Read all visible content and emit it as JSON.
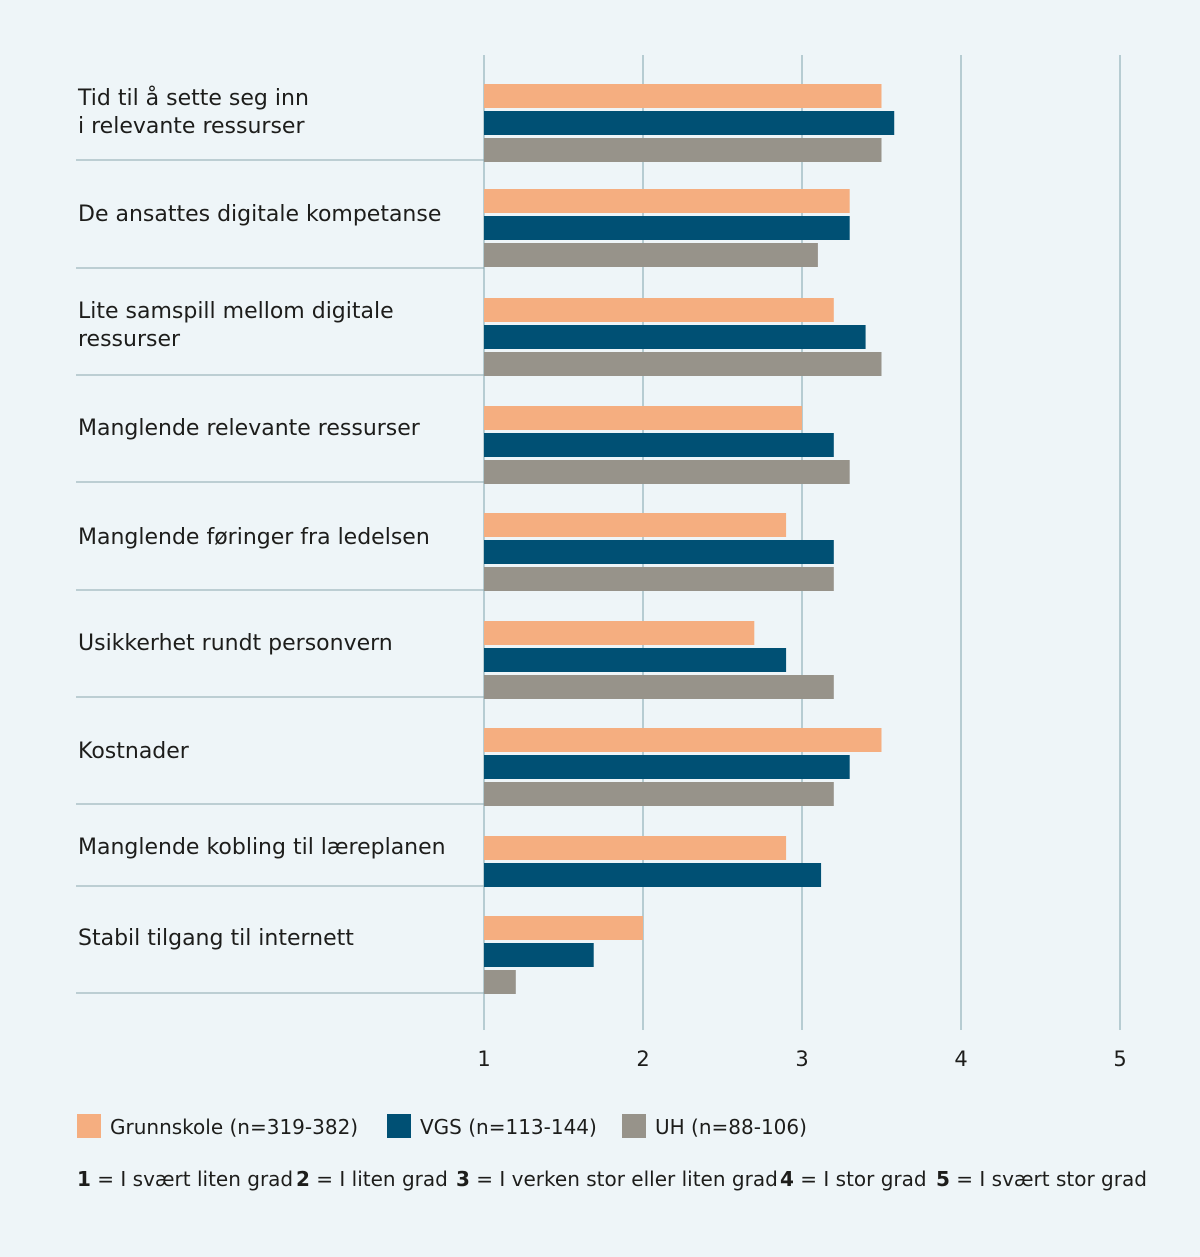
{
  "chart_data": {
    "type": "bar",
    "orientation": "horizontal",
    "categories": [
      [
        "Tid til å sette seg inn",
        "i relevante ressurser"
      ],
      [
        "De ansattes digitale kompetanse"
      ],
      [
        "Lite samspill mellom digitale",
        "ressurser"
      ],
      [
        "Manglende relevante ressurser"
      ],
      [
        "Manglende føringer fra ledelsen"
      ],
      [
        "Usikkerhet rundt personvern"
      ],
      [
        "Kostnader"
      ],
      [
        "Manglende kobling til læreplanen"
      ],
      [
        "Stabil tilgang til internett"
      ]
    ],
    "series": [
      {
        "name": "Grunnskole (n=319-382)",
        "color": "#f5ae80",
        "values": [
          3.5,
          3.3,
          3.2,
          3.0,
          2.9,
          2.7,
          3.5,
          2.9,
          2.0
        ]
      },
      {
        "name": "VGS (n=113-144)",
        "color": "#005074",
        "values": [
          3.58,
          3.3,
          3.4,
          3.2,
          3.2,
          2.9,
          3.3,
          3.12,
          1.69
        ]
      },
      {
        "name": "UH (n=88-106)",
        "color": "#97938a",
        "values": [
          3.5,
          3.1,
          3.5,
          3.3,
          3.2,
          3.2,
          3.2,
          null,
          1.2
        ]
      }
    ],
    "xlim": [
      1,
      5
    ],
    "xticks": [
      "1",
      "2",
      "3",
      "4",
      "5"
    ],
    "grid": true,
    "legend_position": "bottom",
    "scale_legend": [
      {
        "num": "1",
        "text": " = I svært liten grad"
      },
      {
        "num": "2",
        "text": " = I liten grad"
      },
      {
        "num": "3",
        "text": " = I verken stor eller liten grad"
      },
      {
        "num": "4",
        "text": " = I stor grad"
      },
      {
        "num": "5",
        "text": " = I svært stor grad"
      }
    ]
  }
}
